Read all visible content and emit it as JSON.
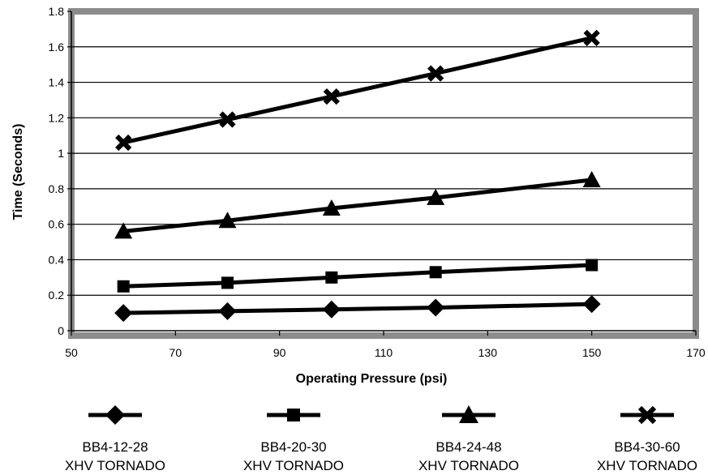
{
  "chart_data": {
    "type": "line",
    "title": "",
    "xlabel": "Operating Pressure (psi)",
    "ylabel": "Time (Seconds)",
    "x": [
      60,
      80,
      100,
      120,
      150
    ],
    "xlim": [
      50,
      170
    ],
    "ylim": [
      0,
      1.8
    ],
    "xticks": [
      "50",
      "70",
      "90",
      "110",
      "130",
      "150",
      "170"
    ],
    "yticks": [
      "0",
      "0.2",
      "0.4",
      "0.6",
      "0.8",
      "1",
      "1.2",
      "1.4",
      "1.6",
      "1.8"
    ],
    "grid": "horizontal",
    "legend_position": "bottom",
    "series": [
      {
        "name": "BB4-12-28",
        "subname": "XHV TORNADO",
        "marker": "diamond",
        "values": [
          0.1,
          0.11,
          0.12,
          0.13,
          0.15
        ]
      },
      {
        "name": "BB4-20-30",
        "subname": "XHV TORNADO",
        "marker": "square",
        "values": [
          0.25,
          0.27,
          0.3,
          0.33,
          0.37
        ]
      },
      {
        "name": "BB4-24-48",
        "subname": "XHV TORNADO",
        "marker": "triangle",
        "values": [
          0.56,
          0.62,
          0.69,
          0.75,
          0.85
        ]
      },
      {
        "name": "BB4-30-60",
        "subname": "XHV TORNADO",
        "marker": "x",
        "values": [
          1.06,
          1.19,
          1.32,
          1.45,
          1.65
        ]
      }
    ],
    "colors": {
      "line": "#000000",
      "frame": "#8c8c8c",
      "grid": "#000000"
    }
  }
}
